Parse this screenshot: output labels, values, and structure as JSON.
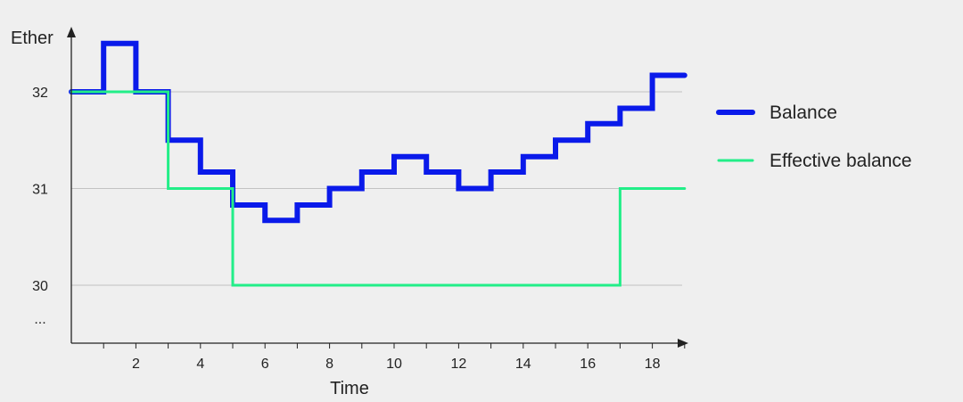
{
  "chart_data": {
    "type": "line",
    "step": true,
    "ylabel": "Ether",
    "xlabel": "Time",
    "x_ticks": [
      2,
      4,
      6,
      8,
      10,
      12,
      14,
      16,
      18
    ],
    "y_ticks": [
      30,
      31,
      32
    ],
    "y_ellipsis": "...",
    "xlim": [
      0,
      19
    ],
    "ylim": [
      29.4,
      32.6
    ],
    "grid": true,
    "legend_position": "right",
    "series": [
      {
        "name": "Balance",
        "color": "#0a1aea",
        "steps": [
          {
            "x": 0,
            "y": 32.0
          },
          {
            "x": 1,
            "y": 32.5
          },
          {
            "x": 2,
            "y": 32.0
          },
          {
            "x": 3,
            "y": 31.5
          },
          {
            "x": 4,
            "y": 31.17
          },
          {
            "x": 5,
            "y": 30.83
          },
          {
            "x": 6,
            "y": 30.67
          },
          {
            "x": 7,
            "y": 30.83
          },
          {
            "x": 8,
            "y": 31.0
          },
          {
            "x": 9,
            "y": 31.17
          },
          {
            "x": 10,
            "y": 31.33
          },
          {
            "x": 11,
            "y": 31.17
          },
          {
            "x": 12,
            "y": 31.0
          },
          {
            "x": 13,
            "y": 31.17
          },
          {
            "x": 14,
            "y": 31.33
          },
          {
            "x": 15,
            "y": 31.5
          },
          {
            "x": 16,
            "y": 31.67
          },
          {
            "x": 17,
            "y": 31.83
          },
          {
            "x": 18,
            "y": 32.17
          },
          {
            "x": 19,
            "y": 32.17
          }
        ]
      },
      {
        "name": "Effective balance",
        "color": "#22ee88",
        "steps": [
          {
            "x": 0,
            "y": 32
          },
          {
            "x": 3,
            "y": 31
          },
          {
            "x": 5,
            "y": 30
          },
          {
            "x": 17,
            "y": 31
          },
          {
            "x": 19,
            "y": 31
          }
        ]
      }
    ]
  }
}
